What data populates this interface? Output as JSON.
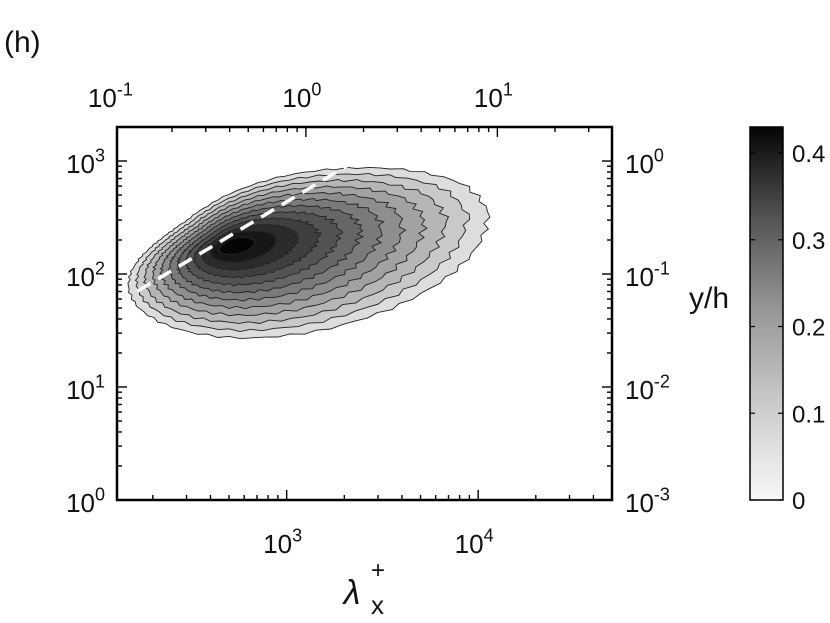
{
  "panel_label": "(h)",
  "chart_data": {
    "type": "contour",
    "x_label_symbol": "λ",
    "x_label_sub": "x",
    "x_label_sup": "+",
    "y_right_label": "y/h",
    "x_scale": "log",
    "y_scale": "log",
    "xlim": [
      130,
      50000
    ],
    "ylim": [
      1,
      2000
    ],
    "x_ticks": [
      {
        "value": 1000,
        "base": "10",
        "exp": "3"
      },
      {
        "value": 10000,
        "base": "10",
        "exp": "4"
      }
    ],
    "y_ticks": [
      {
        "value": 1,
        "base": "10",
        "exp": "0"
      },
      {
        "value": 10,
        "base": "10",
        "exp": "1"
      },
      {
        "value": 100,
        "base": "10",
        "exp": "2"
      },
      {
        "value": 1000,
        "base": "10",
        "exp": "3"
      }
    ],
    "top_ticks": [
      {
        "value": 0.1,
        "base": "10",
        "exp": "-1"
      },
      {
        "value": 1,
        "base": "10",
        "exp": "0"
      },
      {
        "value": 10,
        "base": "10",
        "exp": "1"
      }
    ],
    "right_ticks": [
      {
        "value": 0.001,
        "base": "10",
        "exp": "-3"
      },
      {
        "value": 0.01,
        "base": "10",
        "exp": "-2"
      },
      {
        "value": 0.1,
        "base": "10",
        "exp": "-1"
      },
      {
        "value": 1,
        "base": "10",
        "exp": "0"
      }
    ],
    "peak": {
      "x": 500,
      "y": 180
    },
    "contour_levels": [
      0.03,
      0.065,
      0.1,
      0.135,
      0.17,
      0.205,
      0.24,
      0.275,
      0.31,
      0.345,
      0.38,
      0.415
    ],
    "dashed_line": {
      "x": [
        130,
        4500
      ],
      "y": [
        55,
        2000
      ]
    },
    "colorbar": {
      "min": 0,
      "max": 0.43,
      "ticks": [
        {
          "value": 0,
          "label": "0"
        },
        {
          "value": 0.1,
          "label": "0.1"
        },
        {
          "value": 0.2,
          "label": "0.2"
        },
        {
          "value": 0.3,
          "label": "0.3"
        },
        {
          "value": 0.4,
          "label": "0.4"
        }
      ]
    }
  }
}
